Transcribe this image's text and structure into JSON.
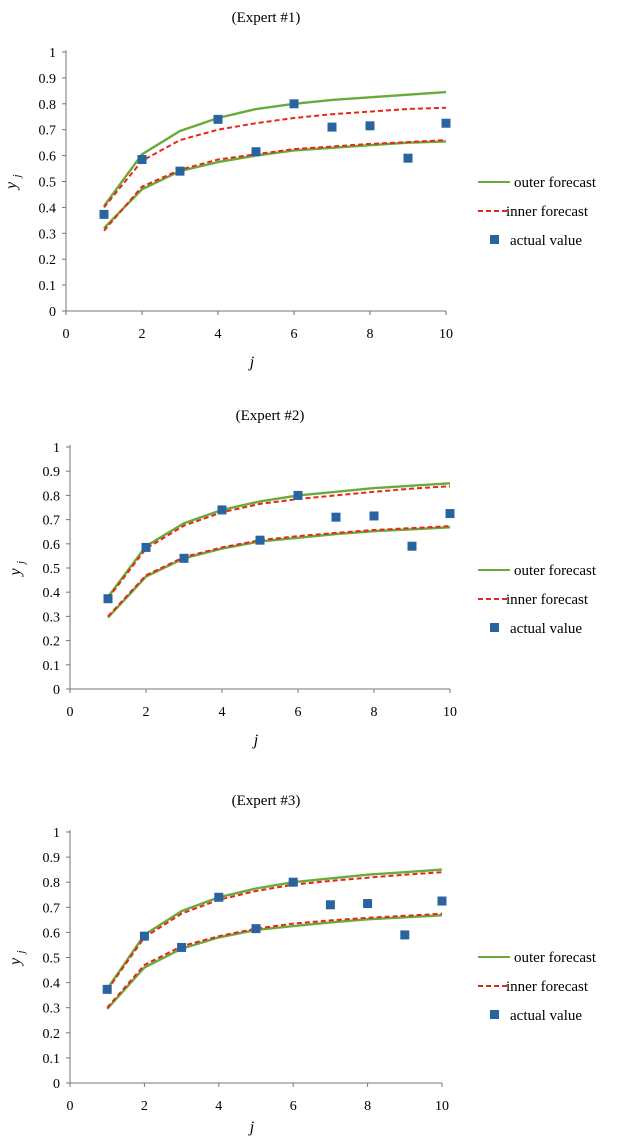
{
  "chart_data": [
    {
      "type": "line",
      "title": "(Expert #1)",
      "xlabel": "j",
      "ylabel": "y",
      "ylabel_sub": "j",
      "xlim": [
        0,
        10
      ],
      "ylim": [
        0,
        1
      ],
      "xticks": [
        "0",
        "2",
        "4",
        "6",
        "8",
        "10"
      ],
      "yticks": [
        "0",
        "0.1",
        "0.2",
        "0.3",
        "0.4",
        "0.5",
        "0.6",
        "0.7",
        "0.8",
        "0.9",
        "1"
      ],
      "x": [
        1,
        2,
        3,
        4,
        5,
        6,
        7,
        8,
        9,
        10
      ],
      "legend": [
        "outer forecast",
        "inner forecast",
        "actual value"
      ],
      "legend_position": "right",
      "series": [
        {
          "name": "outer forecast",
          "style": "solid",
          "color": "#6aaa3a",
          "band": "upper",
          "values": [
            0.405,
            0.605,
            0.695,
            0.745,
            0.78,
            0.8,
            0.815,
            0.825,
            0.835,
            0.845
          ]
        },
        {
          "name": "outer forecast",
          "style": "solid",
          "color": "#6aaa3a",
          "band": "lower",
          "values": [
            0.32,
            0.47,
            0.54,
            0.575,
            0.6,
            0.62,
            0.63,
            0.64,
            0.65,
            0.655
          ]
        },
        {
          "name": "inner forecast",
          "style": "dashed",
          "color": "#e8261a",
          "band": "upper",
          "values": [
            0.4,
            0.58,
            0.66,
            0.7,
            0.725,
            0.745,
            0.76,
            0.77,
            0.78,
            0.785
          ]
        },
        {
          "name": "inner forecast",
          "style": "dashed",
          "color": "#e8261a",
          "band": "lower",
          "values": [
            0.31,
            0.48,
            0.545,
            0.585,
            0.605,
            0.625,
            0.635,
            0.645,
            0.652,
            0.66
          ]
        },
        {
          "name": "actual value",
          "style": "marker",
          "color": "#2a64a0",
          "values": [
            0.373,
            0.585,
            0.54,
            0.74,
            0.615,
            0.8,
            0.71,
            0.715,
            0.59,
            0.725
          ]
        }
      ]
    },
    {
      "type": "line",
      "title": "(Expert #2)",
      "xlabel": "j",
      "ylabel": "y",
      "ylabel_sub": "j",
      "xlim": [
        0,
        10
      ],
      "ylim": [
        0,
        1
      ],
      "xticks": [
        "0",
        "2",
        "4",
        "6",
        "8",
        "10"
      ],
      "yticks": [
        "0",
        "0.1",
        "0.2",
        "0.3",
        "0.4",
        "0.5",
        "0.6",
        "0.7",
        "0.8",
        "0.9",
        "1"
      ],
      "x": [
        1,
        2,
        3,
        4,
        5,
        6,
        7,
        8,
        9,
        10
      ],
      "legend": [
        "outer forecast",
        "inner forecast",
        "actual value"
      ],
      "legend_position": "right",
      "series": [
        {
          "name": "outer forecast",
          "style": "solid",
          "color": "#6aaa3a",
          "band": "upper",
          "values": [
            0.38,
            0.59,
            0.685,
            0.74,
            0.775,
            0.8,
            0.815,
            0.83,
            0.84,
            0.85
          ]
        },
        {
          "name": "outer forecast",
          "style": "solid",
          "color": "#6aaa3a",
          "band": "lower",
          "values": [
            0.295,
            0.465,
            0.54,
            0.58,
            0.61,
            0.625,
            0.64,
            0.652,
            0.66,
            0.668
          ]
        },
        {
          "name": "inner forecast",
          "style": "dashed",
          "color": "#e8261a",
          "band": "upper",
          "values": [
            0.375,
            0.58,
            0.675,
            0.73,
            0.765,
            0.785,
            0.8,
            0.815,
            0.828,
            0.838
          ]
        },
        {
          "name": "inner forecast",
          "style": "dashed",
          "color": "#e8261a",
          "band": "lower",
          "values": [
            0.3,
            0.47,
            0.545,
            0.585,
            0.615,
            0.632,
            0.645,
            0.657,
            0.665,
            0.673
          ]
        },
        {
          "name": "actual value",
          "style": "marker",
          "color": "#2a64a0",
          "values": [
            0.373,
            0.585,
            0.54,
            0.74,
            0.615,
            0.8,
            0.71,
            0.715,
            0.59,
            0.725
          ]
        }
      ]
    },
    {
      "type": "line",
      "title": "(Expert #3)",
      "xlabel": "j",
      "ylabel": "y",
      "ylabel_sub": "j",
      "xlim": [
        0,
        10
      ],
      "ylim": [
        0,
        1
      ],
      "xticks": [
        "0",
        "2",
        "4",
        "6",
        "8",
        "10"
      ],
      "yticks": [
        "0",
        "0.1",
        "0.2",
        "0.3",
        "0.4",
        "0.5",
        "0.6",
        "0.7",
        "0.8",
        "0.9",
        "1"
      ],
      "x": [
        1,
        2,
        3,
        4,
        5,
        6,
        7,
        8,
        9,
        10
      ],
      "legend": [
        "outer forecast",
        "inner forecast",
        "actual value"
      ],
      "legend_position": "right",
      "series": [
        {
          "name": "outer forecast",
          "style": "solid",
          "color": "#6aaa3a",
          "band": "upper",
          "values": [
            0.375,
            0.59,
            0.685,
            0.74,
            0.775,
            0.8,
            0.815,
            0.83,
            0.84,
            0.85
          ]
        },
        {
          "name": "outer forecast",
          "style": "solid",
          "color": "#6aaa3a",
          "band": "lower",
          "values": [
            0.295,
            0.46,
            0.535,
            0.58,
            0.61,
            0.625,
            0.64,
            0.652,
            0.66,
            0.668
          ]
        },
        {
          "name": "inner forecast",
          "style": "dashed",
          "color": "#e8261a",
          "band": "upper",
          "values": [
            0.37,
            0.58,
            0.675,
            0.73,
            0.765,
            0.79,
            0.805,
            0.818,
            0.83,
            0.84
          ]
        },
        {
          "name": "inner forecast",
          "style": "dashed",
          "color": "#e8261a",
          "band": "lower",
          "values": [
            0.3,
            0.47,
            0.545,
            0.585,
            0.615,
            0.635,
            0.648,
            0.658,
            0.666,
            0.674
          ]
        },
        {
          "name": "actual value",
          "style": "marker",
          "color": "#2a64a0",
          "values": [
            0.373,
            0.585,
            0.54,
            0.74,
            0.615,
            0.8,
            0.71,
            0.715,
            0.59,
            0.725
          ]
        }
      ]
    }
  ]
}
